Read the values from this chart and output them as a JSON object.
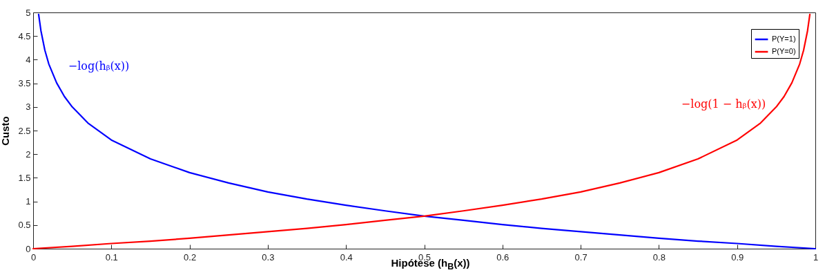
{
  "chart_data": {
    "type": "line",
    "xlabel": "Hipótese (h$_{B}$(x))",
    "ylabel": "Custo",
    "xlim": [
      0,
      1
    ],
    "ylim": [
      0,
      5
    ],
    "xticks": [
      0,
      0.1,
      0.2,
      0.3,
      0.4,
      0.5,
      0.6,
      0.7,
      0.8,
      0.9,
      1
    ],
    "yticks": [
      0,
      0.5,
      1,
      1.5,
      2,
      2.5,
      3,
      3.5,
      4,
      4.5,
      5
    ],
    "grid": false,
    "legend": "top right",
    "line_style": "solid",
    "marker": "none",
    "series": [
      {
        "name": "P(Y=1)",
        "color": "#0000ff",
        "x": [
          0.007,
          0.01,
          0.015,
          0.02,
          0.03,
          0.04,
          0.05,
          0.07,
          0.1,
          0.15,
          0.2,
          0.25,
          0.3,
          0.35,
          0.4,
          0.45,
          0.5,
          0.55,
          0.6,
          0.65,
          0.7,
          0.75,
          0.8,
          0.85,
          0.9,
          0.95,
          1
        ],
        "values": [
          4.96,
          4.61,
          4.2,
          3.91,
          3.51,
          3.22,
          3.0,
          2.66,
          2.3,
          1.9,
          1.61,
          1.39,
          1.2,
          1.05,
          0.92,
          0.8,
          0.69,
          0.6,
          0.51,
          0.43,
          0.36,
          0.29,
          0.22,
          0.16,
          0.11,
          0.05,
          0
        ]
      },
      {
        "name": "P(Y=0)",
        "color": "#ff0000",
        "x": [
          0,
          0.05,
          0.1,
          0.15,
          0.2,
          0.25,
          0.3,
          0.35,
          0.4,
          0.45,
          0.5,
          0.55,
          0.6,
          0.65,
          0.7,
          0.75,
          0.8,
          0.85,
          0.9,
          0.93,
          0.95,
          0.96,
          0.97,
          0.98,
          0.985,
          0.99,
          0.993
        ],
        "values": [
          0,
          0.05,
          0.11,
          0.16,
          0.22,
          0.29,
          0.36,
          0.43,
          0.51,
          0.6,
          0.69,
          0.8,
          0.92,
          1.05,
          1.2,
          1.39,
          1.61,
          1.9,
          2.3,
          2.66,
          3.0,
          3.22,
          3.51,
          3.91,
          4.2,
          4.61,
          4.96
        ]
      }
    ],
    "annotations": [
      "−log(hᵦ(x))",
      "−log(1 − hᵦ(x))"
    ]
  }
}
